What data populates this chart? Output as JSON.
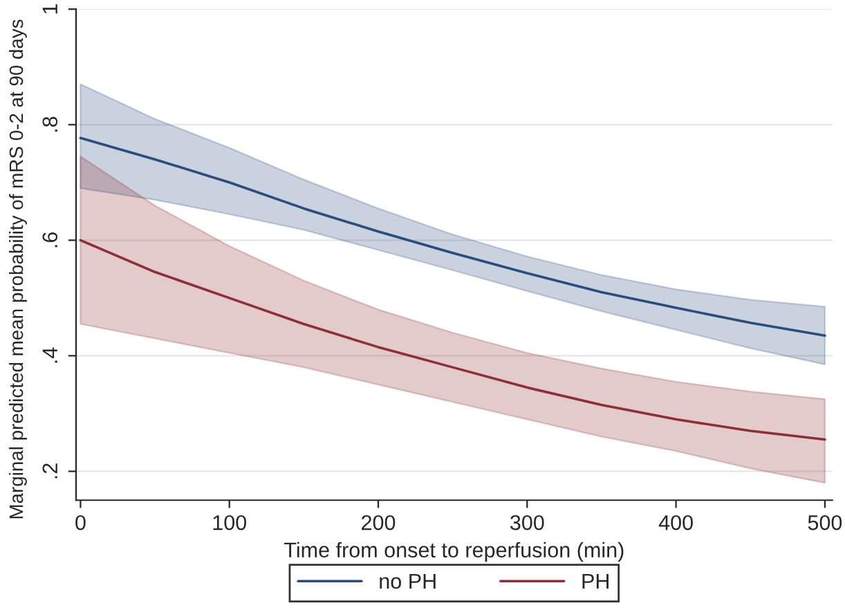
{
  "chart_data": {
    "type": "line",
    "xlabel": "Time from onset to reperfusion (min)",
    "ylabel": "Marginal predicted mean probability of mRS 0-2 at 90 days",
    "x": [
      0,
      50,
      100,
      150,
      200,
      250,
      300,
      350,
      400,
      450,
      500
    ],
    "series": [
      {
        "name": "no PH",
        "color": "#2b4c7e",
        "values": [
          0.777,
          0.74,
          0.7,
          0.655,
          0.615,
          0.578,
          0.543,
          0.51,
          0.483,
          0.457,
          0.435
        ],
        "lower": [
          0.69,
          0.67,
          0.645,
          0.618,
          0.583,
          0.548,
          0.512,
          0.477,
          0.445,
          0.413,
          0.385
        ],
        "upper": [
          0.87,
          0.81,
          0.76,
          0.705,
          0.655,
          0.61,
          0.572,
          0.54,
          0.515,
          0.497,
          0.485
        ]
      },
      {
        "name": "PH",
        "color": "#8f2e35",
        "values": [
          0.6,
          0.545,
          0.5,
          0.455,
          0.415,
          0.38,
          0.345,
          0.315,
          0.29,
          0.27,
          0.255
        ],
        "lower": [
          0.455,
          0.43,
          0.405,
          0.38,
          0.35,
          0.32,
          0.29,
          0.26,
          0.235,
          0.205,
          0.18
        ],
        "upper": [
          0.745,
          0.66,
          0.59,
          0.53,
          0.48,
          0.44,
          0.405,
          0.378,
          0.355,
          0.338,
          0.325
        ]
      }
    ],
    "xlim": [
      -3,
      505
    ],
    "xticks": [
      0,
      100,
      200,
      300,
      400,
      500
    ],
    "ylim": [
      0.15,
      1.0
    ],
    "yticks": [
      {
        "value": 0.2,
        "label": ".2"
      },
      {
        "value": 0.4,
        "label": ".4"
      },
      {
        "value": 0.6,
        "label": ".6"
      },
      {
        "value": 0.8,
        "label": ".8"
      },
      {
        "value": 1,
        "label": "1"
      }
    ],
    "grid": "y",
    "legend": "bottom",
    "line_style": "solid",
    "marker": "none"
  }
}
